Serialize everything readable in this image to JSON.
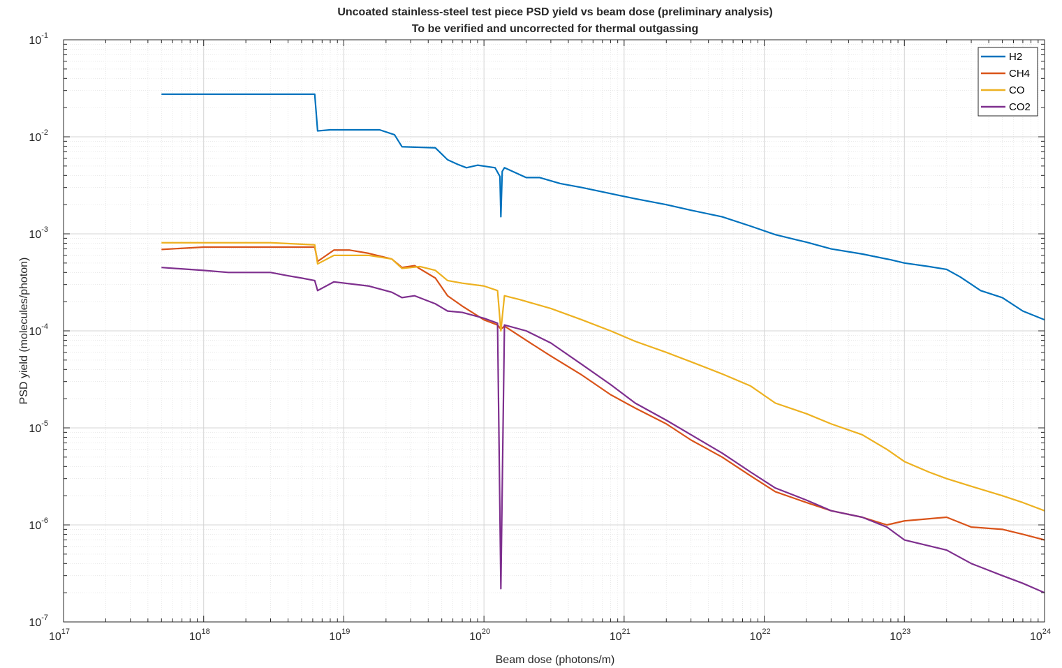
{
  "chart_data": {
    "type": "line",
    "title": "Uncoated stainless-steel test piece PSD yield vs beam dose (preliminary analysis)",
    "subtitle": "To be verified and uncorrected for thermal outgassing",
    "xlabel": "Beam dose (photons/m)",
    "ylabel": "PSD yield (molecules/photon)",
    "xscale": "log",
    "yscale": "log",
    "xlim": [
      1e+17,
      1e+24
    ],
    "ylim": [
      1e-07,
      0.1
    ],
    "grid": "on (major and minor)",
    "legend_position": "top-right",
    "x_ticks": [
      {
        "base": "10",
        "exp": "17"
      },
      {
        "base": "10",
        "exp": "18"
      },
      {
        "base": "10",
        "exp": "19"
      },
      {
        "base": "10",
        "exp": "20"
      },
      {
        "base": "10",
        "exp": "21"
      },
      {
        "base": "10",
        "exp": "22"
      },
      {
        "base": "10",
        "exp": "23"
      },
      {
        "base": "10",
        "exp": "24"
      }
    ],
    "y_ticks": [
      {
        "base": "10",
        "exp": "-7"
      },
      {
        "base": "10",
        "exp": "-6"
      },
      {
        "base": "10",
        "exp": "-5"
      },
      {
        "base": "10",
        "exp": "-4"
      },
      {
        "base": "10",
        "exp": "-3"
      },
      {
        "base": "10",
        "exp": "-2"
      },
      {
        "base": "10",
        "exp": "-1"
      }
    ],
    "series": [
      {
        "name": "H2",
        "color": "#0072BD",
        "x": [
          5e+17,
          6.2e+18,
          6.5e+18,
          8e+18,
          1.8e+19,
          2.3e+19,
          2.6e+19,
          4.5e+19,
          5.5e+19,
          6.5e+19,
          7.5e+19,
          9e+19,
          1.2e+20,
          1.3e+20,
          1.32e+20,
          1.35e+20,
          1.4e+20,
          2e+20,
          2.5e+20,
          3.5e+20,
          5e+20,
          8e+20,
          1.2e+21,
          2e+21,
          3e+21,
          5e+21,
          8e+21,
          1.2e+22,
          2e+22,
          3e+22,
          5e+22,
          8e+22,
          1e+23,
          1.5e+23,
          2e+23,
          2.5e+23,
          3.5e+23,
          5e+23,
          7e+23,
          1e+24
        ],
        "y": [
          0.0275,
          0.0275,
          0.0115,
          0.0118,
          0.0118,
          0.0105,
          0.0079,
          0.0077,
          0.0058,
          0.0052,
          0.0048,
          0.0051,
          0.0048,
          0.0039,
          0.0015,
          0.0044,
          0.0048,
          0.0038,
          0.0038,
          0.0033,
          0.003,
          0.0026,
          0.0023,
          0.002,
          0.00175,
          0.0015,
          0.0012,
          0.00098,
          0.00082,
          0.0007,
          0.00062,
          0.00054,
          0.0005,
          0.00046,
          0.00043,
          0.00036,
          0.00026,
          0.00022,
          0.00016,
          0.00013
        ]
      },
      {
        "name": "CH4",
        "color": "#D95319",
        "x": [
          5e+17,
          1e+18,
          3e+18,
          6.2e+18,
          6.5e+18,
          8.5e+18,
          1.1e+19,
          1.5e+19,
          2.2e+19,
          2.6e+19,
          3.2e+19,
          4.5e+19,
          5.5e+19,
          7e+19,
          1e+20,
          1.25e+20,
          1.32e+20,
          1.4e+20,
          2e+20,
          3e+20,
          5e+20,
          8e+20,
          1.2e+21,
          2e+21,
          3e+21,
          5e+21,
          8e+21,
          1.2e+22,
          2e+22,
          3e+22,
          5e+22,
          7.5e+22,
          1e+23,
          2e+23,
          3e+23,
          5e+23,
          7e+23,
          1e+24
        ],
        "y": [
          0.00069,
          0.00073,
          0.00073,
          0.00073,
          0.00052,
          0.00068,
          0.00068,
          0.00063,
          0.00055,
          0.00045,
          0.00047,
          0.00035,
          0.00023,
          0.00018,
          0.00013,
          0.000115,
          0.000104,
          0.000112,
          8e-05,
          5.5e-05,
          3.5e-05,
          2.2e-05,
          1.6e-05,
          1.1e-05,
          7.5e-06,
          5e-06,
          3.2e-06,
          2.2e-06,
          1.7e-06,
          1.4e-06,
          1.2e-06,
          1e-06,
          1.1e-06,
          1.2e-06,
          9.5e-07,
          9e-07,
          8e-07,
          7e-07
        ]
      },
      {
        "name": "CO",
        "color": "#EDB120",
        "x": [
          5e+17,
          1e+18,
          3e+18,
          6.2e+18,
          6.5e+18,
          8.5e+18,
          1.5e+19,
          2.2e+19,
          2.6e+19,
          3.5e+19,
          4.5e+19,
          5.5e+19,
          7e+19,
          1e+20,
          1.25e+20,
          1.32e+20,
          1.4e+20,
          1.8e+20,
          3e+20,
          5e+20,
          8e+20,
          1.2e+21,
          2e+21,
          3e+21,
          5e+21,
          8e+21,
          1.2e+22,
          2e+22,
          3e+22,
          5e+22,
          7.5e+22,
          1e+23,
          1.5e+23,
          2e+23,
          3e+23,
          5e+23,
          7e+23,
          1e+24
        ],
        "y": [
          0.00081,
          0.00081,
          0.00081,
          0.00077,
          0.00049,
          0.0006,
          0.0006,
          0.00055,
          0.00044,
          0.00046,
          0.00042,
          0.00033,
          0.00031,
          0.00029,
          0.00026,
          0.0001,
          0.00023,
          0.00021,
          0.00017,
          0.00013,
          0.0001,
          7.8e-05,
          6e-05,
          4.8e-05,
          3.6e-05,
          2.7e-05,
          1.8e-05,
          1.4e-05,
          1.1e-05,
          8.5e-06,
          6e-06,
          4.5e-06,
          3.5e-06,
          3e-06,
          2.5e-06,
          2e-06,
          1.7e-06,
          1.4e-06
        ]
      },
      {
        "name": "CO2",
        "color": "#7E2F8E",
        "x": [
          5e+17,
          1e+18,
          1.5e+18,
          3e+18,
          4e+18,
          5e+18,
          6.2e+18,
          6.5e+18,
          8.5e+18,
          1.5e+19,
          2.2e+19,
          2.6e+19,
          3.2e+19,
          4.5e+19,
          5.5e+19,
          7e+19,
          1e+20,
          1.25e+20,
          1.32e+20,
          1.4e+20,
          2e+20,
          3e+20,
          5e+20,
          8e+20,
          1.2e+21,
          2e+21,
          3e+21,
          5e+21,
          8e+21,
          1.2e+22,
          2e+22,
          3e+22,
          5e+22,
          7.5e+22,
          1e+23,
          2e+23,
          3e+23,
          5e+23,
          7e+23,
          1e+24
        ],
        "y": [
          0.00045,
          0.00042,
          0.0004,
          0.0004,
          0.00037,
          0.00035,
          0.00033,
          0.00026,
          0.00032,
          0.00029,
          0.00025,
          0.00022,
          0.00023,
          0.00019,
          0.00016,
          0.000155,
          0.000135,
          0.00012,
          2.2e-07,
          0.000115,
          0.0001,
          7.5e-05,
          4.5e-05,
          2.8e-05,
          1.8e-05,
          1.2e-05,
          8.5e-06,
          5.5e-06,
          3.5e-06,
          2.4e-06,
          1.8e-06,
          1.4e-06,
          1.2e-06,
          9.5e-07,
          7e-07,
          5.5e-07,
          4e-07,
          3e-07,
          2.5e-07,
          2e-07
        ]
      }
    ]
  }
}
